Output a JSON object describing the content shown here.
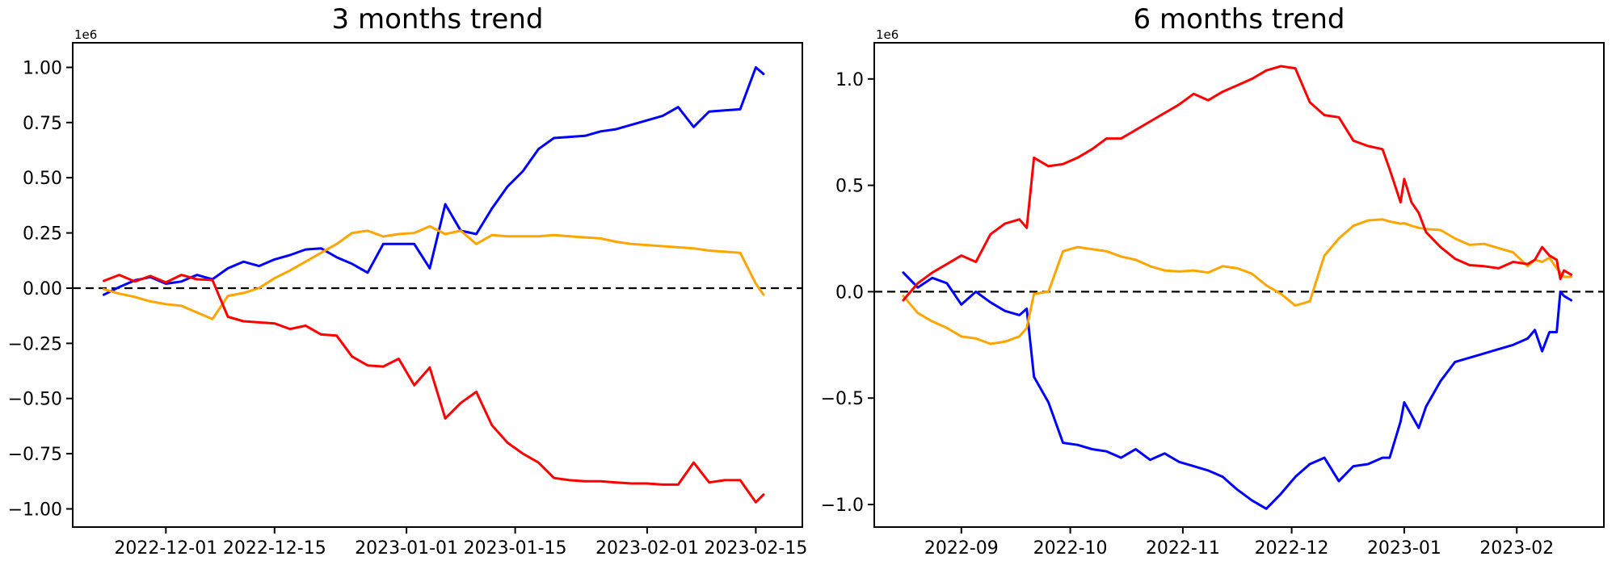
{
  "figure": {
    "background": "#ffffff",
    "axes_color": "#000000",
    "zero_line_color": "#000000"
  },
  "chart_data": [
    {
      "type": "line",
      "title": "3 months trend",
      "offset_label": "1e6",
      "y_multiplier": 1000000,
      "grid": false,
      "legend": null,
      "zero_line": {
        "style": "dashed",
        "color": "#000000",
        "y": 0
      },
      "xlim": [
        "2022-11-19",
        "2023-02-21"
      ],
      "ylim": [
        -1.0823,
        1.1114
      ],
      "xticks": [
        {
          "date": "2022-12-01",
          "label": "2022-12-01"
        },
        {
          "date": "2022-12-15",
          "label": "2022-12-15"
        },
        {
          "date": "2023-01-01",
          "label": "2023-01-01"
        },
        {
          "date": "2023-01-15",
          "label": "2023-01-15"
        },
        {
          "date": "2023-02-01",
          "label": "2023-02-01"
        },
        {
          "date": "2023-02-15",
          "label": "2023-02-15"
        }
      ],
      "yticks": [
        {
          "value": 1.0,
          "label": "1.00"
        },
        {
          "value": 0.75,
          "label": "0.75"
        },
        {
          "value": 0.5,
          "label": "0.50"
        },
        {
          "value": 0.25,
          "label": "0.25"
        },
        {
          "value": 0.0,
          "label": "0.00"
        },
        {
          "value": -0.25,
          "label": "−0.25"
        },
        {
          "value": -0.5,
          "label": "−0.50"
        },
        {
          "value": -0.75,
          "label": "−0.75"
        },
        {
          "value": -1.0,
          "label": "−1.00"
        }
      ],
      "dates": [
        "2022-11-23",
        "2022-11-25",
        "2022-11-27",
        "2022-11-29",
        "2022-12-01",
        "2022-12-03",
        "2022-12-05",
        "2022-12-07",
        "2022-12-09",
        "2022-12-11",
        "2022-12-13",
        "2022-12-15",
        "2022-12-17",
        "2022-12-19",
        "2022-12-21",
        "2022-12-23",
        "2022-12-25",
        "2022-12-27",
        "2022-12-29",
        "2022-12-31",
        "2023-01-02",
        "2023-01-04",
        "2023-01-06",
        "2023-01-08",
        "2023-01-10",
        "2023-01-12",
        "2023-01-14",
        "2023-01-16",
        "2023-01-18",
        "2023-01-20",
        "2023-01-22",
        "2023-01-24",
        "2023-01-26",
        "2023-01-28",
        "2023-01-30",
        "2023-02-01",
        "2023-02-03",
        "2023-02-05",
        "2023-02-07",
        "2023-02-09",
        "2023-02-11",
        "2023-02-13",
        "2023-02-15",
        "2023-02-16"
      ],
      "series": [
        {
          "name": "blue",
          "color": "#0000ff",
          "values": [
            -0.03,
            0.005,
            0.035,
            0.05,
            0.02,
            0.03,
            0.06,
            0.04,
            0.09,
            0.12,
            0.1,
            0.13,
            0.15,
            0.175,
            0.18,
            0.14,
            0.11,
            0.07,
            0.2,
            0.2,
            0.2,
            0.09,
            0.38,
            0.26,
            0.245,
            0.36,
            0.46,
            0.53,
            0.63,
            0.68,
            0.685,
            0.69,
            0.71,
            0.72,
            0.74,
            0.76,
            0.78,
            0.82,
            0.73,
            0.8,
            0.805,
            0.81,
            1.0,
            0.97
          ]
        },
        {
          "name": "orange",
          "color": "#ffa500",
          "values": [
            -0.005,
            -0.025,
            -0.04,
            -0.06,
            -0.073,
            -0.08,
            -0.11,
            -0.14,
            -0.035,
            -0.022,
            0.0,
            0.045,
            0.08,
            0.12,
            0.16,
            0.2,
            0.25,
            0.26,
            0.234,
            0.245,
            0.25,
            0.28,
            0.245,
            0.26,
            0.2,
            0.24,
            0.235,
            0.235,
            0.235,
            0.24,
            0.235,
            0.23,
            0.225,
            0.21,
            0.2,
            0.195,
            0.19,
            0.185,
            0.18,
            0.17,
            0.165,
            0.16,
            0.02,
            -0.03
          ]
        },
        {
          "name": "red",
          "color": "#ff0000",
          "values": [
            0.033,
            0.06,
            0.03,
            0.055,
            0.026,
            0.06,
            0.04,
            0.037,
            -0.13,
            -0.15,
            -0.155,
            -0.16,
            -0.185,
            -0.17,
            -0.21,
            -0.215,
            -0.31,
            -0.35,
            -0.355,
            -0.32,
            -0.44,
            -0.36,
            -0.59,
            -0.52,
            -0.47,
            -0.62,
            -0.7,
            -0.75,
            -0.79,
            -0.86,
            -0.87,
            -0.875,
            -0.875,
            -0.88,
            -0.885,
            -0.885,
            -0.89,
            -0.89,
            -0.79,
            -0.88,
            -0.87,
            -0.87,
            -0.97,
            -0.935
          ]
        }
      ]
    },
    {
      "type": "line",
      "title": "6 months trend",
      "offset_label": "1e6",
      "y_multiplier": 1000000,
      "grid": false,
      "legend": null,
      "zero_line": {
        "style": "dashed",
        "color": "#000000",
        "y": 0
      },
      "xlim": [
        "2022-08-08",
        "2023-02-25"
      ],
      "ylim": [
        -1.106,
        1.17
      ],
      "xticks": [
        {
          "date": "2022-09-01",
          "label": "2022-09"
        },
        {
          "date": "2022-10-01",
          "label": "2022-10"
        },
        {
          "date": "2022-11-01",
          "label": "2022-11"
        },
        {
          "date": "2022-12-01",
          "label": "2022-12"
        },
        {
          "date": "2023-01-01",
          "label": "2023-01"
        },
        {
          "date": "2023-02-01",
          "label": "2023-02"
        }
      ],
      "yticks": [
        {
          "value": 1.0,
          "label": "1.0"
        },
        {
          "value": 0.5,
          "label": "0.5"
        },
        {
          "value": 0.0,
          "label": "0.0"
        },
        {
          "value": -0.5,
          "label": "−0.5"
        },
        {
          "value": -1.0,
          "label": "−1.0"
        }
      ],
      "dates": [
        "2022-08-16",
        "2022-08-20",
        "2022-08-24",
        "2022-08-28",
        "2022-09-01",
        "2022-09-05",
        "2022-09-09",
        "2022-09-13",
        "2022-09-17",
        "2022-09-19",
        "2022-09-21",
        "2022-09-25",
        "2022-09-29",
        "2022-10-03",
        "2022-10-07",
        "2022-10-11",
        "2022-10-15",
        "2022-10-19",
        "2022-10-23",
        "2022-10-27",
        "2022-10-31",
        "2022-11-04",
        "2022-11-08",
        "2022-11-12",
        "2022-11-16",
        "2022-11-20",
        "2022-11-24",
        "2022-11-28",
        "2022-12-02",
        "2022-12-06",
        "2022-12-10",
        "2022-12-14",
        "2022-12-18",
        "2022-12-22",
        "2022-12-26",
        "2022-12-28",
        "2022-12-31",
        "2023-01-01",
        "2023-01-03",
        "2023-01-05",
        "2023-01-07",
        "2023-01-11",
        "2023-01-15",
        "2023-01-19",
        "2023-01-23",
        "2023-01-27",
        "2023-01-31",
        "2023-02-04",
        "2023-02-06",
        "2023-02-08",
        "2023-02-10",
        "2023-02-12",
        "2023-02-13",
        "2023-02-14",
        "2023-02-16"
      ],
      "series": [
        {
          "name": "blue",
          "color": "#0000ff",
          "values": [
            0.09,
            0.02,
            0.065,
            0.04,
            -0.06,
            0.0,
            -0.05,
            -0.09,
            -0.11,
            -0.08,
            -0.4,
            -0.52,
            -0.71,
            -0.72,
            -0.74,
            -0.75,
            -0.78,
            -0.74,
            -0.79,
            -0.76,
            -0.8,
            -0.82,
            -0.84,
            -0.87,
            -0.93,
            -0.98,
            -1.02,
            -0.95,
            -0.87,
            -0.81,
            -0.78,
            -0.89,
            -0.82,
            -0.81,
            -0.78,
            -0.78,
            -0.61,
            -0.52,
            -0.58,
            -0.64,
            -0.54,
            -0.42,
            -0.33,
            -0.31,
            -0.29,
            -0.27,
            -0.25,
            -0.22,
            -0.18,
            -0.28,
            -0.19,
            -0.19,
            0.0,
            -0.02,
            -0.04
          ]
        },
        {
          "name": "orange",
          "color": "#ffa500",
          "values": [
            -0.02,
            -0.1,
            -0.14,
            -0.17,
            -0.21,
            -0.22,
            -0.245,
            -0.235,
            -0.21,
            -0.17,
            -0.01,
            0.0,
            0.19,
            0.21,
            0.2,
            0.19,
            0.165,
            0.15,
            0.12,
            0.1,
            0.095,
            0.1,
            0.09,
            0.12,
            0.11,
            0.085,
            0.03,
            -0.01,
            -0.065,
            -0.045,
            0.17,
            0.25,
            0.31,
            0.335,
            0.34,
            0.33,
            0.32,
            0.322,
            0.31,
            0.3,
            0.295,
            0.29,
            0.25,
            0.22,
            0.225,
            0.205,
            0.185,
            0.12,
            0.15,
            0.14,
            0.16,
            0.11,
            0.09,
            0.07,
            0.07
          ]
        },
        {
          "name": "red",
          "color": "#ff0000",
          "values": [
            -0.04,
            0.04,
            0.09,
            0.13,
            0.17,
            0.14,
            0.27,
            0.32,
            0.34,
            0.3,
            0.63,
            0.59,
            0.6,
            0.63,
            0.67,
            0.72,
            0.72,
            0.76,
            0.8,
            0.84,
            0.88,
            0.93,
            0.9,
            0.94,
            0.97,
            1.0,
            1.04,
            1.06,
            1.05,
            0.89,
            0.83,
            0.82,
            0.71,
            0.685,
            0.67,
            0.575,
            0.42,
            0.53,
            0.42,
            0.37,
            0.28,
            0.21,
            0.155,
            0.125,
            0.12,
            0.11,
            0.14,
            0.13,
            0.15,
            0.21,
            0.17,
            0.15,
            0.06,
            0.1,
            0.08
          ]
        }
      ]
    }
  ]
}
